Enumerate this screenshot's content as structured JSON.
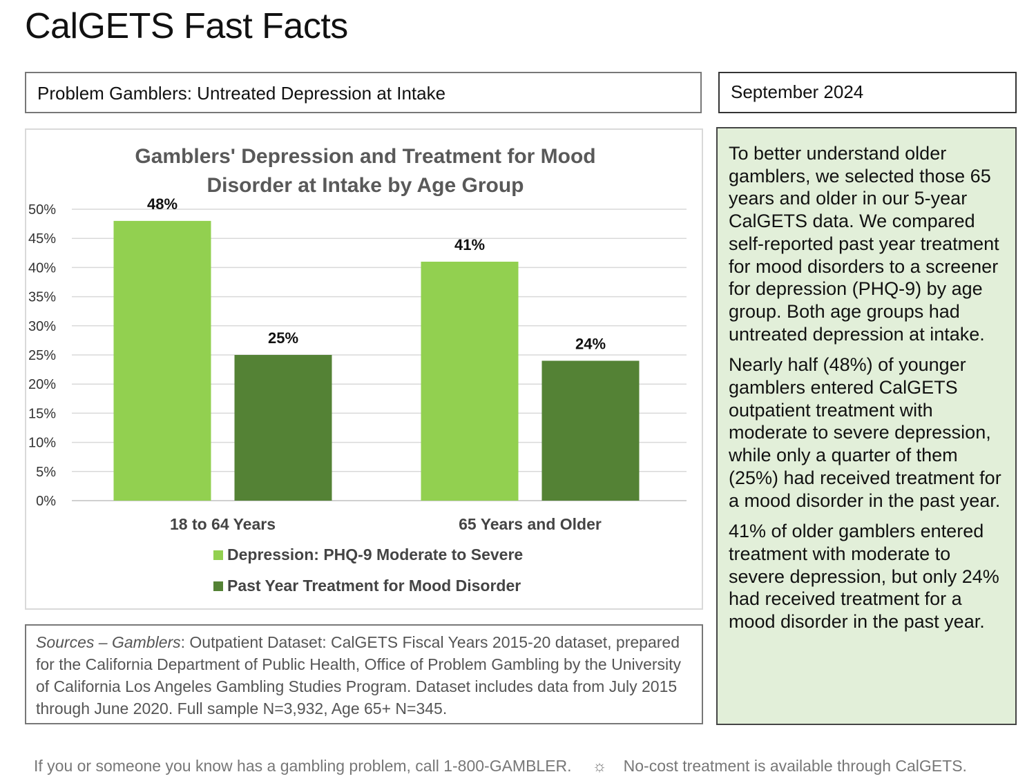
{
  "header": {
    "title": "CalGETS Fast Facts",
    "subtitle": "Problem Gamblers: Untreated Depression at Intake",
    "date": "September 2024"
  },
  "chart_data": {
    "type": "bar",
    "title_lines": [
      "Gamblers' Depression and Treatment for Mood",
      "Disorder at Intake by Age Group"
    ],
    "categories": [
      "18 to 64 Years",
      "65 Years and Older"
    ],
    "series": [
      {
        "name": "Depression: PHQ-9 Moderate to Severe",
        "values": [
          48,
          41
        ],
        "labels": [
          "48%",
          "41%"
        ],
        "color": "#92d050"
      },
      {
        "name": "Past Year Treatment for Mood Disorder",
        "values": [
          25,
          24
        ],
        "labels": [
          "25%",
          "24%"
        ],
        "color": "#548235"
      }
    ],
    "y_ticks": [
      "0%",
      "5%",
      "10%",
      "15%",
      "20%",
      "25%",
      "30%",
      "35%",
      "40%",
      "45%",
      "50%"
    ],
    "ylim": [
      0,
      50
    ],
    "grid": true,
    "legend_position": "bottom"
  },
  "sources": {
    "label": "Sources – Gamblers",
    "text": ": Outpatient Dataset: CalGETS Fiscal Years 2015-20 dataset, prepared for the California Department of Public Health, Office of Problem Gambling by the University of California Los Angeles Gambling Studies Program. Dataset includes data from July 2015 through June 2020. Full sample N=3,932, Age 65+ N=345."
  },
  "panel": {
    "paragraphs": [
      "To better understand older gamblers, we selected those 65 years and older in our 5-year CalGETS data. We compared self-reported past year treatment for mood disorders to a screener for depression (PHQ-9) by age group. Both age groups had untreated depression at intake.",
      "Nearly half (48%) of younger gamblers entered CalGETS outpatient treatment with moderate to severe depression, while only a quarter of them (25%) had received treatment for a mood disorder in the past year.",
      "41% of older gamblers entered treatment with moderate to severe depression, but only 24% had received treatment for a mood disorder in the past year."
    ]
  },
  "footer": {
    "left": "If you or someone you know has a gambling problem, call 1-800-GAMBLER.",
    "separator": "☼",
    "right": "No-cost treatment is available through CalGETS."
  }
}
